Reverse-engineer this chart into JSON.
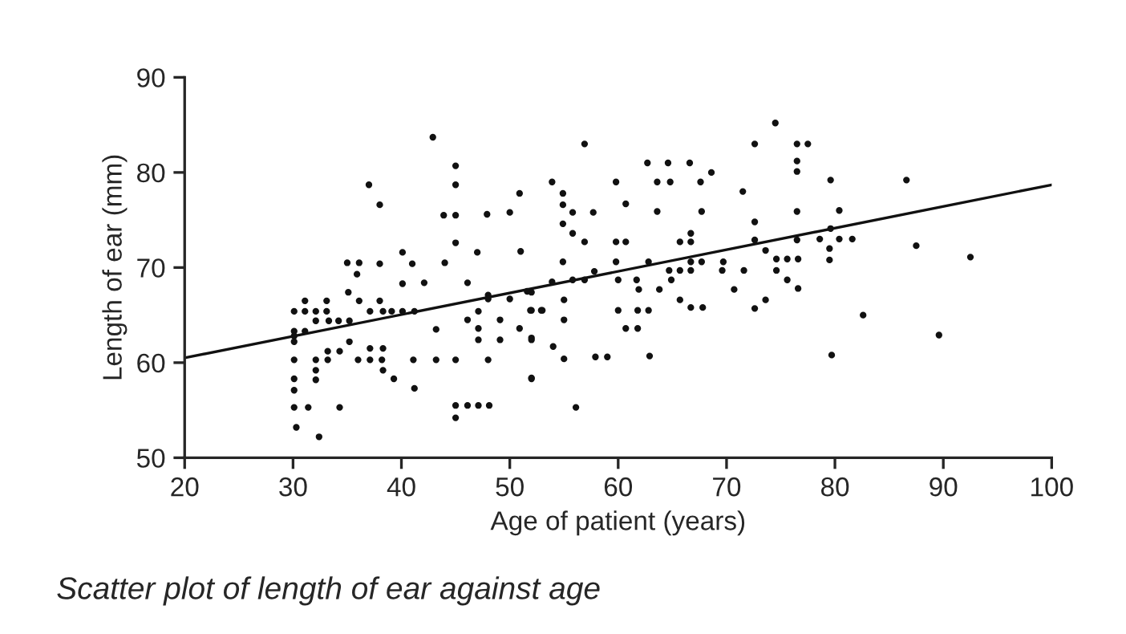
{
  "chart_data": {
    "type": "scatter",
    "xlabel": "Age of patient (years)",
    "ylabel": "Length of ear (mm)",
    "annotations": [
      "Scatter plot of length of ear against age"
    ],
    "xlim": [
      20,
      100
    ],
    "ylim": [
      50,
      90
    ],
    "xticks": [
      20,
      30,
      40,
      50,
      60,
      70,
      80,
      90,
      100
    ],
    "yticks": [
      50,
      60,
      70,
      80,
      90
    ],
    "grid": false,
    "legend": false,
    "series": [
      {
        "marker": "circle",
        "color": "#111111",
        "x": [
          42.9,
          45.0,
          45.0,
          37.0,
          38.0,
          43.9,
          45.0,
          47.9,
          50.0,
          50.9,
          45.0,
          47.0,
          51.0,
          40.1,
          35.0,
          36.1,
          38.0,
          41.0,
          44.0,
          35.9,
          40.1,
          42.1,
          46.1,
          35.1,
          31.1,
          33.1,
          36.1,
          38.0,
          48.0,
          48.0,
          50.0,
          52.0,
          30.1,
          31.1,
          32.1,
          33.1,
          37.1,
          38.3,
          39.1,
          40.1,
          41.2,
          47.1,
          52.0,
          53.0,
          32.1,
          33.3,
          34.2,
          35.2,
          46.1,
          49.1,
          30.1,
          31.1,
          30.1,
          43.2,
          50.9,
          47.1,
          47.1,
          49.1,
          52.0,
          30.1,
          35.2,
          33.2,
          34.3,
          37.1,
          38.3,
          30.1,
          32.1,
          33.2,
          36.0,
          37.1,
          38.2,
          41.1,
          43.2,
          45.0,
          48.0,
          32.1,
          38.3,
          32.1,
          39.3,
          30.1,
          30.1,
          41.2,
          52.0,
          30.1,
          31.4,
          34.3,
          45.0,
          46.1,
          47.1,
          48.1,
          45.0,
          30.3,
          32.4,
          74.5,
          56.9,
          72.6,
          76.5,
          77.5,
          76.5,
          76.5,
          62.7,
          64.6,
          66.6,
          68.6,
          53.9,
          59.8,
          63.6,
          64.8,
          67.6,
          54.9,
          71.5,
          54.9,
          55.8,
          57.7,
          60.7,
          63.6,
          67.7,
          76.5,
          54.9,
          72.6,
          55.8,
          66.7,
          56.9,
          59.8,
          60.7,
          65.7,
          66.7,
          72.6,
          76.5,
          73.6,
          54.9,
          59.8,
          62.8,
          66.7,
          67.7,
          69.7,
          74.6,
          75.6,
          76.6,
          51.6,
          53.9,
          57.8,
          55.8,
          56.9,
          64.7,
          65.7,
          66.7,
          69.6,
          71.6,
          74.6,
          75.6,
          76.6,
          60.0,
          61.7,
          64.9,
          61.9,
          63.8,
          70.7,
          52.9,
          51.9,
          55.0,
          65.7,
          73.6,
          60.0,
          61.8,
          62.8,
          66.7,
          67.8,
          72.6,
          55.0,
          60.7,
          61.8,
          52.0,
          54.0,
          55.0,
          57.9,
          59.0,
          62.9,
          52.0,
          56.1,
          79.6,
          86.6,
          80.4,
          79.6,
          78.6,
          80.4,
          81.6,
          87.5,
          79.5,
          79.5,
          92.5,
          82.6,
          89.6,
          79.7
        ],
        "values": [
          83.7,
          80.7,
          78.7,
          78.7,
          76.6,
          75.5,
          75.5,
          75.6,
          75.8,
          77.8,
          72.6,
          71.6,
          71.7,
          71.6,
          70.5,
          70.5,
          70.4,
          70.4,
          70.5,
          69.3,
          68.3,
          68.4,
          68.4,
          67.4,
          66.5,
          66.5,
          66.5,
          66.5,
          67.1,
          66.7,
          66.7,
          67.4,
          65.4,
          65.4,
          65.4,
          65.4,
          65.4,
          65.4,
          65.4,
          65.4,
          65.4,
          65.4,
          65.5,
          65.5,
          64.4,
          64.4,
          64.4,
          64.4,
          64.5,
          64.5,
          63.3,
          63.3,
          62.8,
          63.5,
          63.6,
          63.6,
          62.4,
          62.4,
          62.4,
          62.2,
          62.2,
          61.2,
          61.2,
          61.5,
          61.5,
          60.3,
          60.3,
          60.3,
          60.3,
          60.3,
          60.3,
          60.3,
          60.3,
          60.3,
          60.3,
          59.2,
          59.2,
          58.2,
          58.3,
          58.3,
          57.1,
          57.3,
          58.4,
          55.3,
          55.3,
          55.3,
          55.5,
          55.5,
          55.5,
          55.5,
          54.2,
          53.2,
          52.2,
          85.2,
          83.0,
          83.0,
          83.0,
          83.0,
          81.2,
          80.1,
          81.0,
          81.0,
          81.0,
          80.0,
          79.0,
          79.0,
          79.0,
          79.0,
          79.0,
          77.8,
          78.0,
          76.6,
          75.8,
          75.8,
          76.7,
          75.9,
          75.9,
          75.9,
          74.6,
          74.8,
          73.6,
          73.6,
          72.7,
          72.7,
          72.7,
          72.7,
          72.7,
          72.9,
          72.9,
          71.8,
          70.6,
          70.6,
          70.6,
          70.6,
          70.6,
          70.6,
          70.9,
          70.9,
          70.9,
          67.5,
          68.5,
          69.6,
          68.7,
          68.7,
          69.7,
          69.7,
          69.7,
          69.7,
          69.7,
          69.7,
          68.7,
          67.8,
          68.7,
          68.7,
          68.7,
          67.7,
          67.7,
          67.7,
          65.5,
          65.5,
          66.6,
          66.6,
          66.6,
          65.5,
          65.5,
          65.5,
          65.8,
          65.8,
          65.7,
          64.5,
          63.6,
          63.6,
          62.6,
          61.7,
          60.4,
          60.6,
          60.6,
          60.7,
          58.3,
          55.3,
          79.2,
          79.2,
          76.0,
          74.1,
          73.0,
          73.0,
          73.0,
          72.3,
          72.0,
          70.8,
          71.1,
          65.0,
          62.9,
          60.8
        ]
      },
      {
        "type": "line",
        "color": "#111111",
        "x": [
          20,
          100
        ],
        "values": [
          60.5,
          78.7
        ]
      }
    ]
  }
}
